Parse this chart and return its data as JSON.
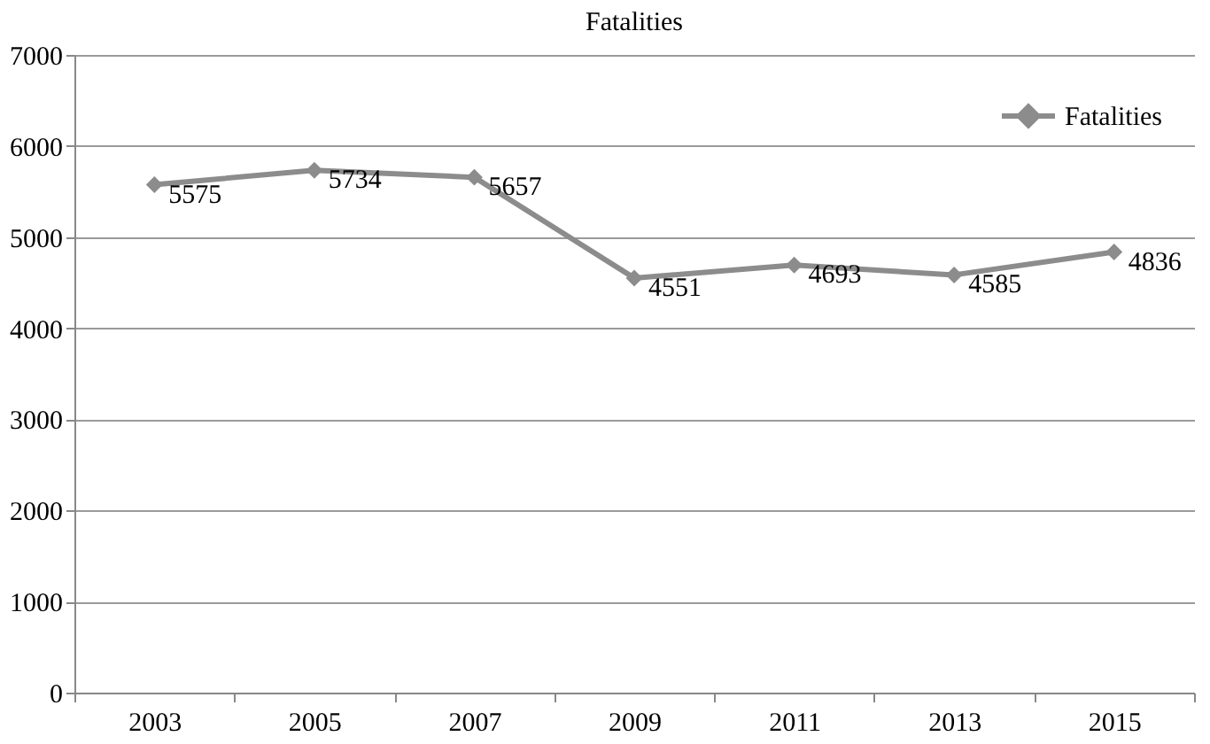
{
  "chart_data": {
    "type": "line",
    "title": "Fatalities",
    "categories": [
      "2003",
      "2005",
      "2007",
      "2009",
      "2011",
      "2013",
      "2015"
    ],
    "series": [
      {
        "name": "Fatalities",
        "color": "#8c8c8c",
        "values": [
          5575,
          5734,
          5657,
          4551,
          4693,
          4585,
          4836
        ]
      }
    ],
    "ylim": [
      0,
      7000
    ],
    "yticks": [
      0,
      1000,
      2000,
      3000,
      4000,
      5000,
      6000,
      7000
    ],
    "grid": "y",
    "legend": "top right",
    "marker": "diamond",
    "line_style": "solid",
    "data_labels": true
  }
}
